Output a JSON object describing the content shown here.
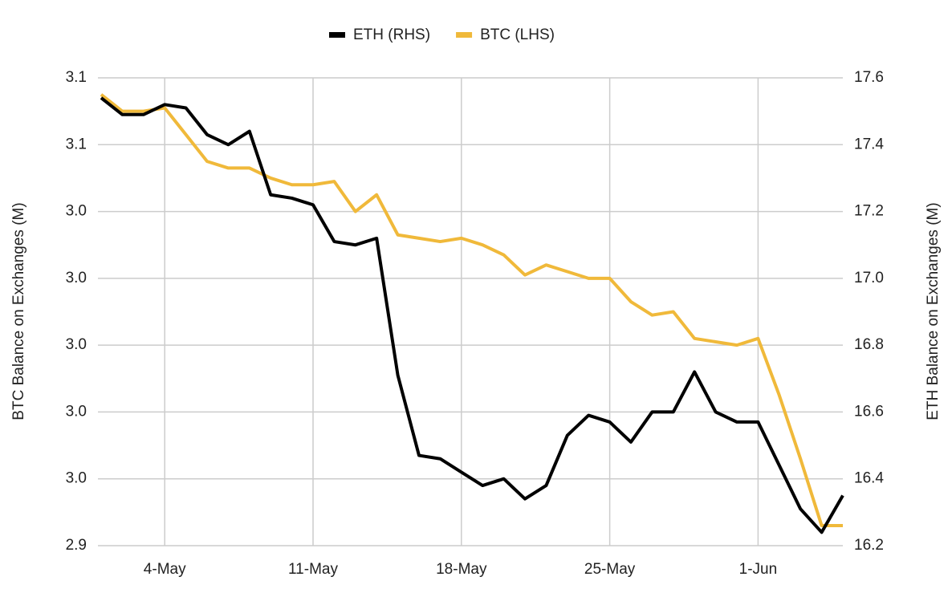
{
  "chart_data": {
    "type": "line",
    "categories": [
      null,
      null,
      null,
      "4-May",
      null,
      null,
      null,
      null,
      null,
      null,
      "11-May",
      null,
      null,
      null,
      null,
      null,
      null,
      "18-May",
      null,
      null,
      null,
      null,
      null,
      null,
      "25-May",
      null,
      null,
      null,
      null,
      null,
      null,
      "1-Jun",
      null,
      null,
      null,
      null
    ],
    "series": [
      {
        "name": "ETH (RHS)",
        "color": "#000000",
        "axis": "y2",
        "values": [
          17.54,
          17.49,
          17.49,
          17.52,
          17.51,
          17.43,
          17.4,
          17.44,
          17.25,
          17.24,
          17.22,
          17.11,
          17.1,
          17.12,
          16.71,
          16.47,
          16.46,
          16.42,
          16.38,
          16.4,
          16.34,
          16.38,
          16.53,
          16.59,
          16.57,
          16.51,
          16.6,
          16.6,
          16.72,
          16.6,
          16.57,
          16.57,
          16.44,
          16.31,
          16.24,
          16.35
        ]
      },
      {
        "name": "BTC (LHS)",
        "color": "#f0b93a",
        "values": [
          3.075,
          3.07,
          3.07,
          3.071,
          3.063,
          3.055,
          3.053,
          3.053,
          3.05,
          3.048,
          3.048,
          3.049,
          3.04,
          3.045,
          3.033,
          3.032,
          3.031,
          3.032,
          3.03,
          3.027,
          3.021,
          3.024,
          3.022,
          3.02,
          3.02,
          3.013,
          3.009,
          3.01,
          3.002,
          3.001,
          3.0,
          3.002,
          2.985,
          2.966,
          2.946,
          2.946
        ]
      }
    ],
    "y_label": "BTC Balance on Exchanges (M)",
    "y2_label": "ETH Balance on Exchanges (M)",
    "ylim": [
      2.94,
      3.08
    ],
    "yticks": [
      {
        "value": 2.94,
        "label": "2.9"
      },
      {
        "value": 2.96,
        "label": "3.0"
      },
      {
        "value": 2.98,
        "label": "3.0"
      },
      {
        "value": 3.0,
        "label": "3.0"
      },
      {
        "value": 3.02,
        "label": "3.0"
      },
      {
        "value": 3.04,
        "label": "3.0"
      },
      {
        "value": 3.06,
        "label": "3.1"
      },
      {
        "value": 3.08,
        "label": "3.1"
      }
    ],
    "y2lim": [
      16.2,
      17.6
    ],
    "y2ticks": [
      16.2,
      16.4,
      16.6,
      16.8,
      {
        "value": 17,
        "label": "17.0"
      },
      17.2,
      17.4,
      17.6
    ],
    "grid": true,
    "legend": "top"
  }
}
